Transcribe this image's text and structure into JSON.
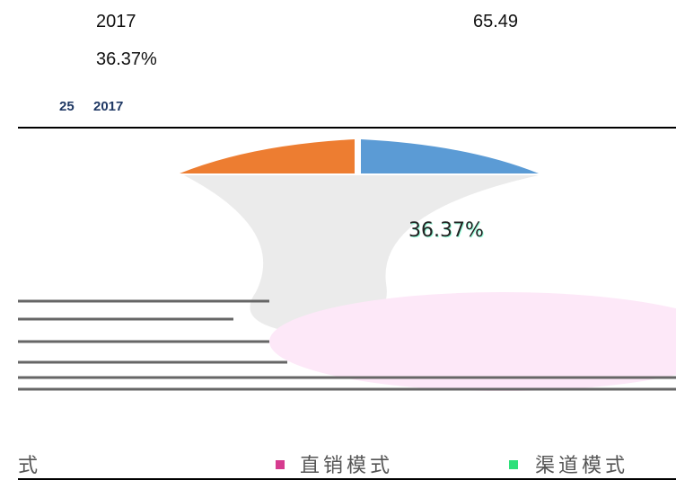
{
  "body": {
    "year": "2017",
    "amount": "65.49",
    "share": "36.37%"
  },
  "figure": {
    "caption_number": "25",
    "caption_year": "2017",
    "slice_label": "36.37%",
    "legend": [
      "式",
      "直销模式",
      "渠道模式"
    ]
  }
}
